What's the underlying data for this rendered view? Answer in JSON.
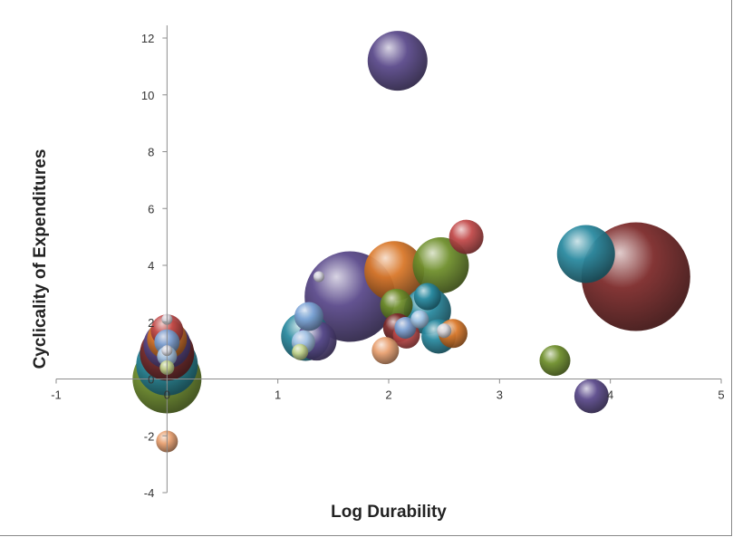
{
  "chart_data": {
    "type": "scatter",
    "xlabel": "Log Durability",
    "ylabel": "Cyclicality of Expenditures",
    "xlim": [
      -1,
      5
    ],
    "ylim": [
      -4,
      12
    ],
    "x_ticks": [
      "-1",
      "0",
      "1",
      "2",
      "3",
      "4",
      "5"
    ],
    "y_ticks": [
      "-4",
      "-2",
      "0",
      "2",
      "4",
      "6",
      "8",
      "10",
      "12"
    ],
    "grid": false,
    "legend": "none",
    "palette": [
      "#5b4a8b",
      "#7d2b2b",
      "#2a8aa0",
      "#6f8f2c",
      "#d9782a",
      "#c24a4a",
      "#7fa6d8",
      "#e8a070",
      "#a8c8e8",
      "#c8d890",
      "#d8d8e0"
    ],
    "bubbles": [
      {
        "x": 0.0,
        "y": 0.0,
        "size": 38,
        "color": "#6f8f2c"
      },
      {
        "x": 0.0,
        "y": 0.5,
        "size": 34,
        "color": "#2a8aa0"
      },
      {
        "x": 0.0,
        "y": 0.9,
        "size": 30,
        "color": "#7d2b2b"
      },
      {
        "x": 0.0,
        "y": 1.2,
        "size": 26,
        "color": "#5b4a8b"
      },
      {
        "x": 0.0,
        "y": 1.4,
        "size": 22,
        "color": "#d9782a"
      },
      {
        "x": 0.0,
        "y": 1.7,
        "size": 18,
        "color": "#c24a4a"
      },
      {
        "x": 0.0,
        "y": 1.3,
        "size": 14,
        "color": "#7fa6d8"
      },
      {
        "x": 0.0,
        "y": 0.8,
        "size": 11,
        "color": "#a8c8e8"
      },
      {
        "x": 0.0,
        "y": 0.4,
        "size": 8,
        "color": "#c8d890"
      },
      {
        "x": 0.0,
        "y": 1.0,
        "size": 6,
        "color": "#d8d8e0"
      },
      {
        "x": 0.0,
        "y": -2.2,
        "size": 12,
        "color": "#e8a070"
      },
      {
        "x": 0.0,
        "y": 2.1,
        "size": 6,
        "color": "#d8d8e0"
      },
      {
        "x": 2.08,
        "y": 11.2,
        "size": 33,
        "color": "#5b4a8b"
      },
      {
        "x": 1.65,
        "y": 2.9,
        "size": 50,
        "color": "#5b4a8b"
      },
      {
        "x": 1.25,
        "y": 1.5,
        "size": 27,
        "color": "#2a8aa0"
      },
      {
        "x": 1.35,
        "y": 1.35,
        "size": 22,
        "color": "#5b4a8b"
      },
      {
        "x": 1.28,
        "y": 2.2,
        "size": 16,
        "color": "#7fa6d8"
      },
      {
        "x": 1.23,
        "y": 1.3,
        "size": 13,
        "color": "#a8c8e8"
      },
      {
        "x": 1.2,
        "y": 0.95,
        "size": 9,
        "color": "#c8d890"
      },
      {
        "x": 1.37,
        "y": 3.6,
        "size": 6,
        "color": "#d8d8e0"
      },
      {
        "x": 2.05,
        "y": 3.8,
        "size": 33,
        "color": "#d9782a"
      },
      {
        "x": 2.47,
        "y": 4.0,
        "size": 31,
        "color": "#6f8f2c"
      },
      {
        "x": 2.7,
        "y": 5.0,
        "size": 19,
        "color": "#c24a4a"
      },
      {
        "x": 2.35,
        "y": 2.4,
        "size": 26,
        "color": "#2a8aa0"
      },
      {
        "x": 2.35,
        "y": 2.9,
        "size": 15,
        "color": "#2a8aa0"
      },
      {
        "x": 2.07,
        "y": 2.6,
        "size": 18,
        "color": "#6f8f2c"
      },
      {
        "x": 2.45,
        "y": 1.5,
        "size": 19,
        "color": "#2a8aa0"
      },
      {
        "x": 2.58,
        "y": 1.6,
        "size": 16,
        "color": "#d9782a"
      },
      {
        "x": 2.16,
        "y": 1.55,
        "size": 15,
        "color": "#c24a4a"
      },
      {
        "x": 2.08,
        "y": 1.8,
        "size": 16,
        "color": "#7d2b2b"
      },
      {
        "x": 2.15,
        "y": 1.8,
        "size": 12,
        "color": "#7fa6d8"
      },
      {
        "x": 2.28,
        "y": 2.1,
        "size": 10,
        "color": "#a8c8e8"
      },
      {
        "x": 2.5,
        "y": 1.7,
        "size": 8,
        "color": "#d8d8e0"
      },
      {
        "x": 1.97,
        "y": 1.0,
        "size": 15,
        "color": "#e8a070"
      },
      {
        "x": 3.78,
        "y": 4.4,
        "size": 32,
        "color": "#2a8aa0"
      },
      {
        "x": 4.23,
        "y": 3.6,
        "size": 60,
        "color": "#7d2b2b"
      },
      {
        "x": 3.5,
        "y": 0.65,
        "size": 17,
        "color": "#6f8f2c"
      },
      {
        "x": 3.83,
        "y": -0.6,
        "size": 19,
        "color": "#5b4a8b"
      }
    ]
  }
}
